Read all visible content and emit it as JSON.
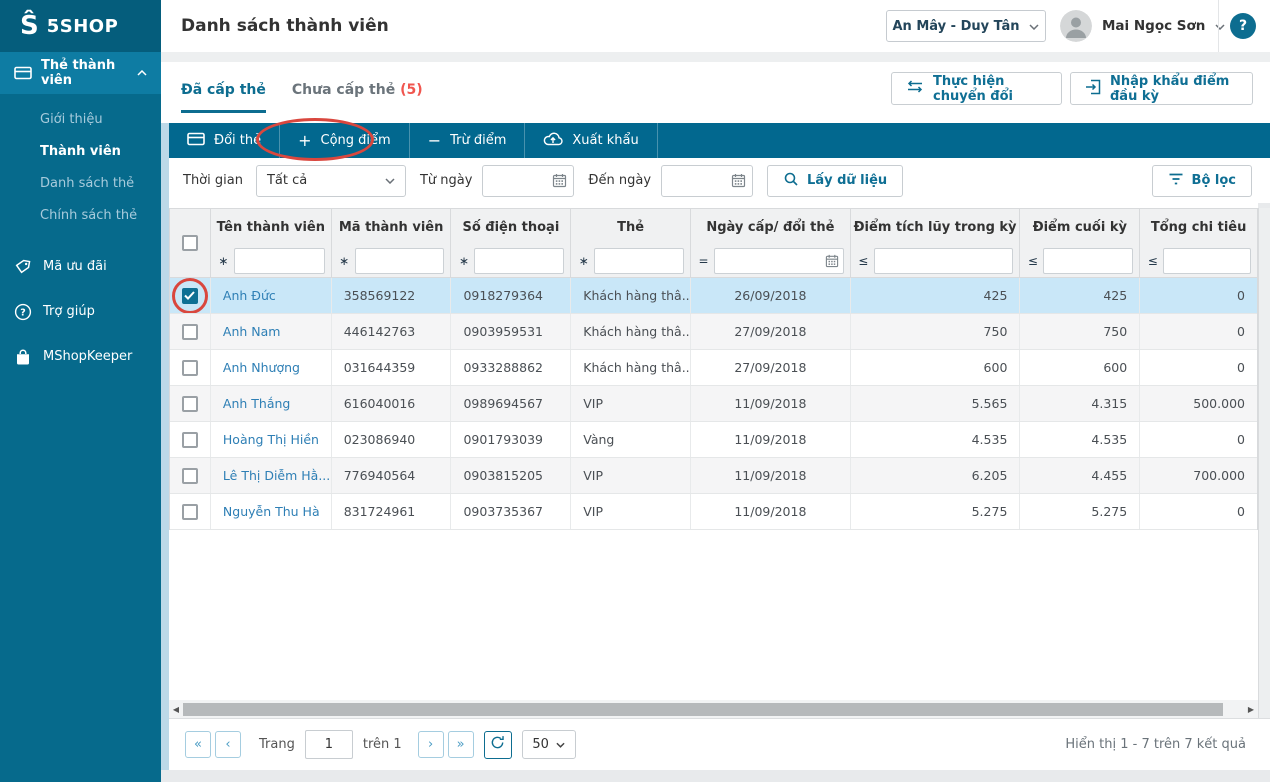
{
  "colors": {
    "sidebar": "#066a8c",
    "sidebar_logo_band": "#055d7c",
    "sidebar_active": "#0e7ca3",
    "toolbar": "#02688f",
    "accent": "#0d6d90",
    "link": "#2e7fb5",
    "selected_row": "#c9e7f8",
    "annotation": "#d9473e",
    "badge_red": "#f0564f"
  },
  "sidebar": {
    "logo": {
      "mark": "Ŝ",
      "text": "5SHOP"
    },
    "parent": {
      "label": "Thẻ thành viên",
      "icon": "card-icon",
      "state": "expanded"
    },
    "submenu": [
      "Giới thiệu",
      "Thành viên",
      "Danh sách thẻ",
      "Chính sách thẻ"
    ],
    "active_submenu": "Thành viên",
    "items": [
      {
        "label": "Mã ưu đãi",
        "icon": "tag-icon"
      },
      {
        "label": "Trợ giúp",
        "icon": "question-icon"
      },
      {
        "label": "MShopKeeper",
        "icon": "bag-icon"
      }
    ]
  },
  "header": {
    "title": "Danh sách thành viên",
    "store_selector": "An Mây - Duy Tân",
    "user_name": "Mai Ngọc Sơn",
    "help": "?"
  },
  "tabs": [
    {
      "label": "Đã cấp thẻ",
      "active": true
    },
    {
      "label": "Chưa cấp thẻ",
      "badge": "(5)",
      "active": false
    }
  ],
  "actions": [
    {
      "label": "Thực hiện chuyển đổi",
      "icon": "transfer-icon"
    },
    {
      "label": "Nhập khẩu điểm đầu kỳ",
      "icon": "import-icon"
    }
  ],
  "toolbar": [
    {
      "label": "Đổi thẻ",
      "icon": "card-icon"
    },
    {
      "label": "Cộng điểm",
      "icon": "plus-icon",
      "annotated": true
    },
    {
      "label": "Trừ điểm",
      "icon": "minus-icon"
    },
    {
      "label": "Xuất khẩu",
      "icon": "cloud-export-icon"
    }
  ],
  "filter_bar": {
    "time_label": "Thời gian",
    "time_value": "Tất cả",
    "from_label": "Từ ngày",
    "to_label": "Đến ngày",
    "get_data": "Lấy dữ liệu",
    "filter": "Bộ lọc"
  },
  "table": {
    "columns": [
      {
        "label": "Tên thành viên",
        "operator": "∗",
        "filter": "text"
      },
      {
        "label": "Mã thành viên",
        "operator": "∗",
        "filter": "text"
      },
      {
        "label": "Số điện thoại",
        "operator": "∗",
        "filter": "text"
      },
      {
        "label": "Thẻ",
        "operator": "∗",
        "filter": "text"
      },
      {
        "label": "Ngày cấp/ đổi thẻ",
        "operator": "=",
        "filter": "date"
      },
      {
        "label": "Điểm tích lũy trong kỳ",
        "operator": "≤",
        "filter": "number"
      },
      {
        "label": "Điểm cuối kỳ",
        "operator": "≤",
        "filter": "number"
      },
      {
        "label": "Tổng chi tiêu",
        "operator": "≤",
        "filter": "number"
      }
    ],
    "rows": [
      {
        "checked": true,
        "selected": true,
        "annotated": true,
        "cells": [
          "Anh Đức",
          "358569122",
          "0918279364",
          "Khách hàng thâ...",
          "26/09/2018",
          "425",
          "425",
          "0"
        ]
      },
      {
        "checked": false,
        "cells": [
          "Anh Nam",
          "446142763",
          "0903959531",
          "Khách hàng thâ...",
          "27/09/2018",
          "750",
          "750",
          "0"
        ]
      },
      {
        "checked": false,
        "cells": [
          "Anh Nhượng",
          "031644359",
          "0933288862",
          "Khách hàng thâ...",
          "27/09/2018",
          "600",
          "600",
          "0"
        ]
      },
      {
        "checked": false,
        "cells": [
          "Anh Thắng",
          "616040016",
          "0989694567",
          "VIP",
          "11/09/2018",
          "5.565",
          "4.315",
          "500.000"
        ]
      },
      {
        "checked": false,
        "cells": [
          "Hoàng Thị Hiền",
          "023086940",
          "0901793039",
          "Vàng",
          "11/09/2018",
          "4.535",
          "4.535",
          "0"
        ]
      },
      {
        "checked": false,
        "cells": [
          "Lê Thị Diễm Hằ...",
          "776940564",
          "0903815205",
          "VIP",
          "11/09/2018",
          "6.205",
          "4.455",
          "700.000"
        ]
      },
      {
        "checked": false,
        "cells": [
          "Nguyễn Thu Hà",
          "831724961",
          "0903735367",
          "VIP",
          "11/09/2018",
          "5.275",
          "5.275",
          "0"
        ]
      }
    ]
  },
  "pagination": {
    "first": "«",
    "prev": "‹",
    "page_label": "Trang",
    "page_value": "1",
    "of_label": "trên 1",
    "next": "›",
    "last": "»",
    "page_size": "50",
    "summary": "Hiển thị 1 - 7 trên 7 kết quả"
  }
}
